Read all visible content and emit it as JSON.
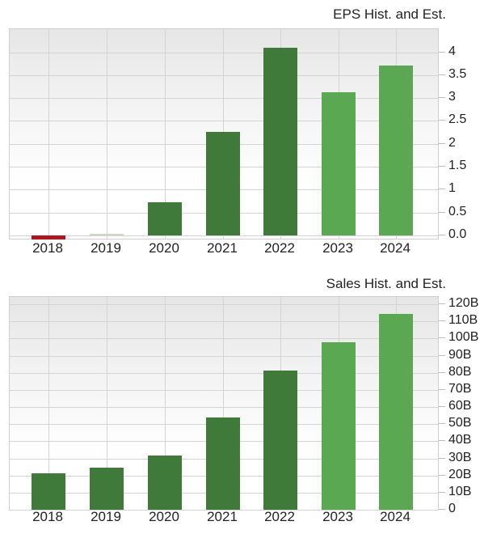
{
  "charts": {
    "eps": {
      "title": "EPS Hist. and Est.",
      "y_ticks": [
        "4",
        "3.5",
        "3",
        "2.5",
        "2",
        "1.5",
        "1",
        "0.5",
        "0.0"
      ],
      "x_labels": [
        "2018",
        "2019",
        "2020",
        "2021",
        "2022",
        "2023",
        "2024"
      ]
    },
    "sales": {
      "title": "Sales Hist. and Est.",
      "y_ticks": [
        "120B",
        "110B",
        "100B",
        "90B",
        "80B",
        "70B",
        "60B",
        "50B",
        "40B",
        "30B",
        "20B",
        "10B",
        "0"
      ],
      "x_labels": [
        "2018",
        "2019",
        "2020",
        "2021",
        "2022",
        "2023",
        "2024"
      ]
    }
  },
  "colors": {
    "historical": "#3f7a3a",
    "estimate": "#5aa852",
    "negative": "#b5121b",
    "near_zero": "#c9d8c6",
    "grid": "#d4d4d4"
  },
  "chart_data": [
    {
      "type": "bar",
      "title": "EPS Hist. and Est.",
      "xlabel": "",
      "ylabel": "",
      "categories": [
        "2018",
        "2019",
        "2020",
        "2021",
        "2022",
        "2023",
        "2024"
      ],
      "values": [
        -0.08,
        0.02,
        0.73,
        2.26,
        4.09,
        3.13,
        3.7
      ],
      "bar_kind": [
        "historical",
        "historical",
        "historical",
        "historical",
        "historical",
        "estimate",
        "estimate"
      ],
      "ylim": [
        -0.1,
        4.5
      ],
      "y_ticks": [
        0.0,
        0.5,
        1,
        1.5,
        2,
        2.5,
        3,
        3.5,
        4
      ],
      "y_axis_position": "right",
      "grid": true,
      "legend": null
    },
    {
      "type": "bar",
      "title": "Sales Hist. and Est.",
      "xlabel": "",
      "ylabel": "",
      "categories": [
        "2018",
        "2019",
        "2020",
        "2021",
        "2022",
        "2023",
        "2024"
      ],
      "values": [
        21.4,
        24.6,
        31.5,
        53.7,
        81.2,
        97.6,
        114.5
      ],
      "units": "B",
      "bar_kind": [
        "historical",
        "historical",
        "historical",
        "historical",
        "historical",
        "estimate",
        "estimate"
      ],
      "ylim": [
        0,
        120
      ],
      "y_ticks": [
        0,
        10,
        20,
        30,
        40,
        50,
        60,
        70,
        80,
        90,
        100,
        110,
        120
      ],
      "y_axis_position": "right",
      "grid": true,
      "legend": null
    }
  ]
}
